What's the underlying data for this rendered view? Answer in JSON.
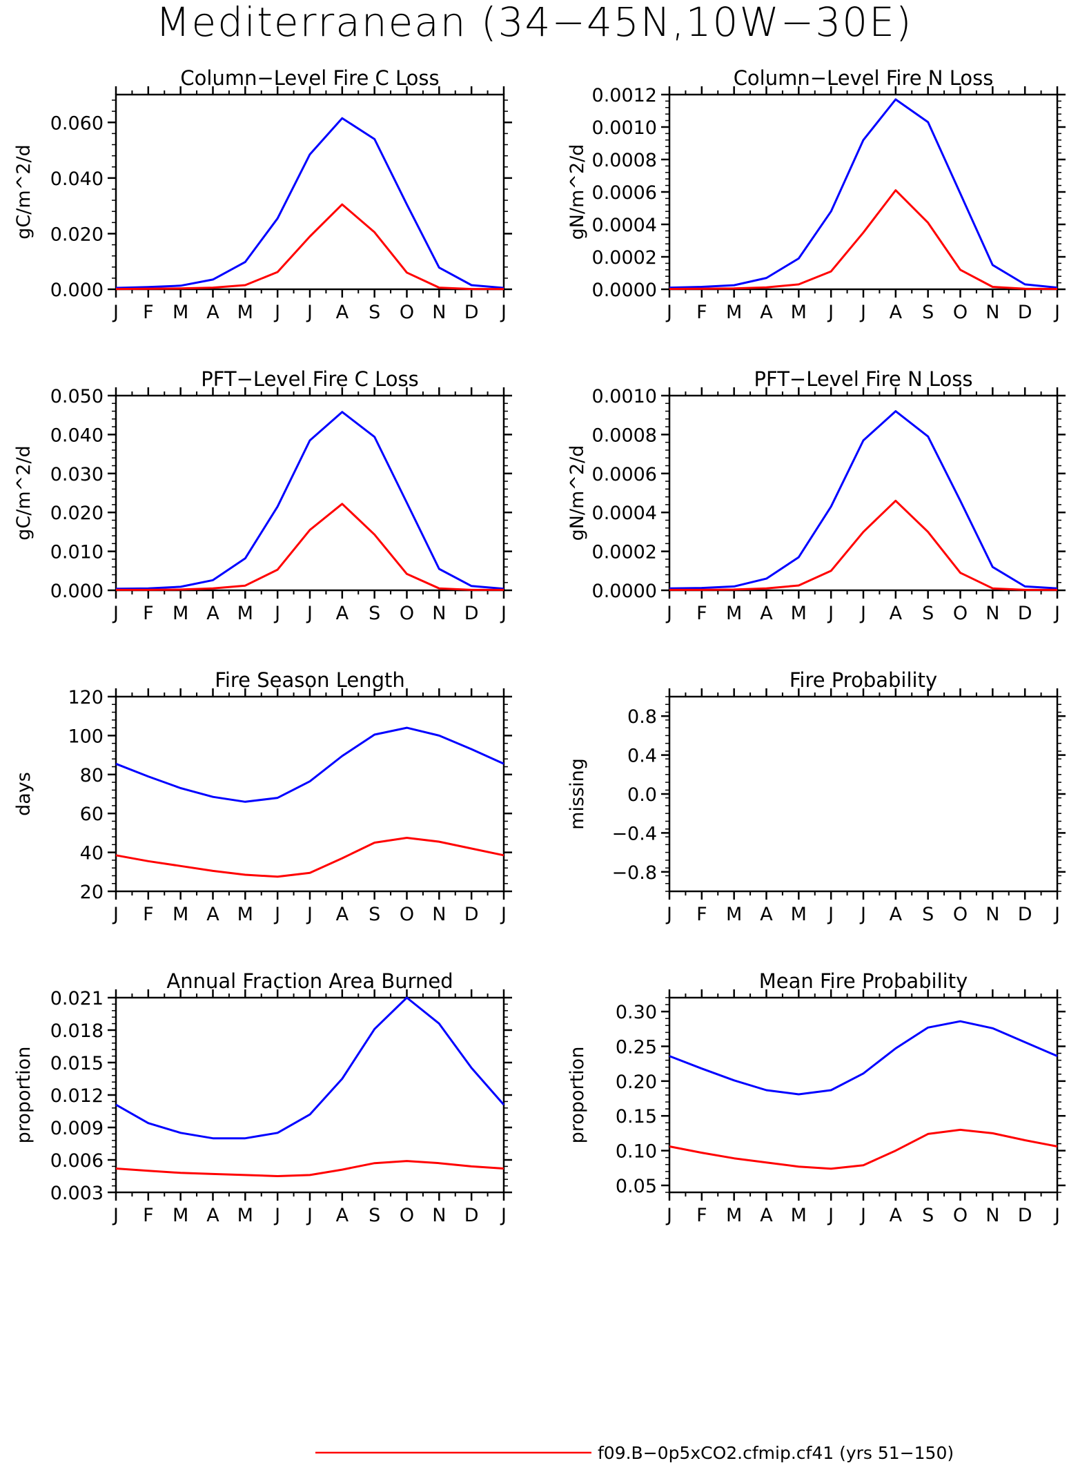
{
  "figure": {
    "title": "Mediterranean (34−45N,10W−30E)"
  },
  "colors": {
    "series_a": "#0000ff",
    "series_b": "#ff0000"
  },
  "legend": {
    "position": "bottom-right",
    "entries": [
      {
        "label": "f09.B−0p5xCO2.cfmip.cf41 (yrs 51−150)",
        "color": "#ff0000"
      }
    ]
  },
  "chart_data": [
    {
      "type": "line",
      "title": "Column−Level Fire C Loss",
      "ylabel": "gC/m^2/d",
      "categories": [
        "J",
        "F",
        "M",
        "A",
        "M",
        "J",
        "J",
        "A",
        "S",
        "O",
        "N",
        "D",
        "J"
      ],
      "ylim": [
        0.0,
        0.07
      ],
      "yticks": [
        0.0,
        0.02,
        0.04,
        0.06
      ],
      "ytick_labels": [
        "0.000",
        "0.020",
        "0.040",
        "0.060"
      ],
      "series": [
        {
          "color": "#0000ff",
          "values": [
            0.0005,
            0.0008,
            0.0013,
            0.0035,
            0.0098,
            0.0255,
            0.0485,
            0.0615,
            0.054,
            0.0305,
            0.0078,
            0.0015,
            0.0005
          ]
        },
        {
          "color": "#ff0000",
          "values": [
            0.0001,
            0.0002,
            0.0003,
            0.0006,
            0.0015,
            0.0062,
            0.019,
            0.0305,
            0.0205,
            0.006,
            0.0006,
            0.0001,
            0.0001
          ]
        }
      ],
      "grid": false
    },
    {
      "type": "line",
      "title": "Column−Level Fire N Loss",
      "ylabel": "gN/m^2/d",
      "categories": [
        "J",
        "F",
        "M",
        "A",
        "M",
        "J",
        "J",
        "A",
        "S",
        "O",
        "N",
        "D",
        "J"
      ],
      "ylim": [
        0.0,
        0.0012
      ],
      "yticks": [
        0.0,
        0.0002,
        0.0004,
        0.0006,
        0.0008,
        0.001,
        0.0012
      ],
      "ytick_labels": [
        "0.0000",
        "0.0002",
        "0.0004",
        "0.0006",
        "0.0008",
        "0.0010",
        "0.0012"
      ],
      "series": [
        {
          "color": "#0000ff",
          "values": [
            1e-05,
            1.5e-05,
            2.5e-05,
            7e-05,
            0.00019,
            0.00048,
            0.00092,
            0.00117,
            0.00103,
            0.00059,
            0.00015,
            3e-05,
            1e-05
          ]
        },
        {
          "color": "#ff0000",
          "values": [
            2e-06,
            3e-06,
            5e-06,
            1.2e-05,
            3e-05,
            0.00011,
            0.00035,
            0.00061,
            0.00041,
            0.00012,
            1.5e-05,
            3e-06,
            2e-06
          ]
        }
      ],
      "grid": false
    },
    {
      "type": "line",
      "title": "PFT−Level Fire C Loss",
      "ylabel": "gC/m^2/d",
      "categories": [
        "J",
        "F",
        "M",
        "A",
        "M",
        "J",
        "J",
        "A",
        "S",
        "O",
        "N",
        "D",
        "J"
      ],
      "ylim": [
        0.0,
        0.05
      ],
      "yticks": [
        0.0,
        0.01,
        0.02,
        0.03,
        0.04,
        0.05
      ],
      "ytick_labels": [
        "0.000",
        "0.010",
        "0.020",
        "0.030",
        "0.040",
        "0.050"
      ],
      "series": [
        {
          "color": "#0000ff",
          "values": [
            0.0004,
            0.0005,
            0.0009,
            0.0026,
            0.0082,
            0.0215,
            0.0385,
            0.0458,
            0.0394,
            0.0225,
            0.0055,
            0.0011,
            0.0004
          ]
        },
        {
          "color": "#ff0000",
          "values": [
            0.0001,
            0.0001,
            0.0002,
            0.0005,
            0.0012,
            0.0053,
            0.0155,
            0.0222,
            0.0143,
            0.0042,
            0.0005,
            0.0001,
            0.0001
          ]
        }
      ],
      "grid": false
    },
    {
      "type": "line",
      "title": "PFT−Level Fire N Loss",
      "ylabel": "gN/m^2/d",
      "categories": [
        "J",
        "F",
        "M",
        "A",
        "M",
        "J",
        "J",
        "A",
        "S",
        "O",
        "N",
        "D",
        "J"
      ],
      "ylim": [
        0.0,
        0.001
      ],
      "yticks": [
        0.0,
        0.0002,
        0.0004,
        0.0006,
        0.0008,
        0.001
      ],
      "ytick_labels": [
        "0.0000",
        "0.0002",
        "0.0004",
        "0.0006",
        "0.0008",
        "0.0010"
      ],
      "series": [
        {
          "color": "#0000ff",
          "values": [
            1e-05,
            1.2e-05,
            2e-05,
            6e-05,
            0.00017,
            0.00043,
            0.00077,
            0.00092,
            0.00079,
            0.00046,
            0.00012,
            2e-05,
            1e-05
          ]
        },
        {
          "color": "#ff0000",
          "values": [
            2e-06,
            2e-06,
            4e-06,
            1e-05,
            2.5e-05,
            0.0001,
            0.0003,
            0.00046,
            0.0003,
            9e-05,
            1e-05,
            2e-06,
            2e-06
          ]
        }
      ],
      "grid": false
    },
    {
      "type": "line",
      "title": "Fire Season Length",
      "ylabel": "days",
      "categories": [
        "J",
        "F",
        "M",
        "A",
        "M",
        "J",
        "J",
        "A",
        "S",
        "O",
        "N",
        "D",
        "J"
      ],
      "ylim": [
        20,
        120
      ],
      "yticks": [
        20,
        40,
        60,
        80,
        100,
        120
      ],
      "ytick_labels": [
        "20",
        "40",
        "60",
        "80",
        "100",
        "120"
      ],
      "series": [
        {
          "color": "#0000ff",
          "values": [
            85.5,
            79,
            73,
            68.5,
            66,
            68,
            76.5,
            89.5,
            100.5,
            104,
            100,
            93,
            85.5
          ]
        },
        {
          "color": "#ff0000",
          "values": [
            38.5,
            35.5,
            33,
            30.5,
            28.5,
            27.5,
            29.5,
            37,
            45,
            47.5,
            45.5,
            42,
            38.5
          ]
        }
      ],
      "grid": false
    },
    {
      "type": "line",
      "title": "Fire Probability",
      "ylabel": "missing",
      "categories": [
        "J",
        "F",
        "M",
        "A",
        "M",
        "J",
        "J",
        "A",
        "S",
        "O",
        "N",
        "D",
        "J"
      ],
      "ylim": [
        -1.0,
        1.0
      ],
      "yticks": [
        -0.8,
        -0.4,
        0.0,
        0.4,
        0.8
      ],
      "ytick_labels": [
        "−0.8",
        "−0.4",
        "0.0",
        "0.4",
        "0.8"
      ],
      "series": [],
      "grid": false
    },
    {
      "type": "line",
      "title": "Annual Fraction Area Burned",
      "ylabel": "proportion",
      "categories": [
        "J",
        "F",
        "M",
        "A",
        "M",
        "J",
        "J",
        "A",
        "S",
        "O",
        "N",
        "D",
        "J"
      ],
      "ylim": [
        0.003,
        0.021
      ],
      "yticks": [
        0.003,
        0.006,
        0.009,
        0.012,
        0.015,
        0.018,
        0.021
      ],
      "ytick_labels": [
        "0.003",
        "0.006",
        "0.009",
        "0.012",
        "0.015",
        "0.018",
        "0.021"
      ],
      "series": [
        {
          "color": "#0000ff",
          "values": [
            0.0111,
            0.0094,
            0.0085,
            0.008,
            0.008,
            0.0085,
            0.0102,
            0.0135,
            0.0181,
            0.021,
            0.0186,
            0.0145,
            0.0111
          ]
        },
        {
          "color": "#ff0000",
          "values": [
            0.0052,
            0.005,
            0.0048,
            0.0047,
            0.0046,
            0.0045,
            0.0046,
            0.0051,
            0.0057,
            0.0059,
            0.0057,
            0.0054,
            0.0052
          ]
        }
      ],
      "grid": false
    },
    {
      "type": "line",
      "title": "Mean Fire Probability",
      "ylabel": "proportion",
      "categories": [
        "J",
        "F",
        "M",
        "A",
        "M",
        "J",
        "J",
        "A",
        "S",
        "O",
        "N",
        "D",
        "J"
      ],
      "ylim": [
        0.04,
        0.32
      ],
      "yticks": [
        0.05,
        0.1,
        0.15,
        0.2,
        0.25,
        0.3
      ],
      "ytick_labels": [
        "0.05",
        "0.10",
        "0.15",
        "0.20",
        "0.25",
        "0.30"
      ],
      "series": [
        {
          "color": "#0000ff",
          "values": [
            0.236,
            0.218,
            0.201,
            0.187,
            0.181,
            0.187,
            0.211,
            0.247,
            0.277,
            0.286,
            0.276,
            0.256,
            0.236
          ]
        },
        {
          "color": "#ff0000",
          "values": [
            0.106,
            0.097,
            0.089,
            0.083,
            0.077,
            0.074,
            0.079,
            0.1,
            0.124,
            0.13,
            0.125,
            0.115,
            0.106
          ]
        }
      ],
      "grid": false
    }
  ]
}
